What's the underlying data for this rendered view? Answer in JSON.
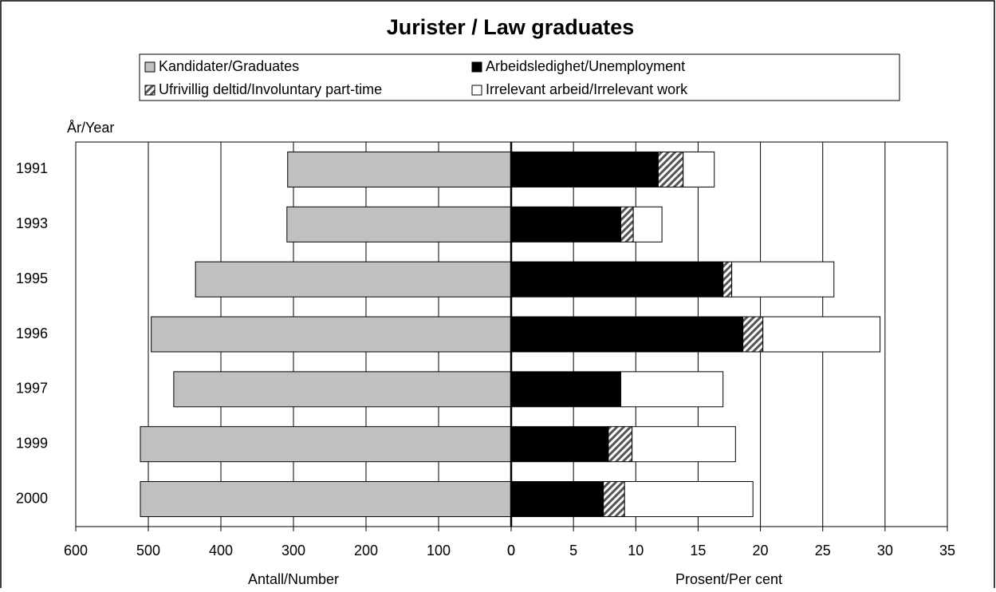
{
  "chart_data": {
    "type": "butterfly",
    "title": "Jurister / Law graduates",
    "ylabel": "År/Year",
    "categories": [
      "1991",
      "1993",
      "1995",
      "1996",
      "1997",
      "1999",
      "2000"
    ],
    "xlabel": "Antall/Number",
    "xlim": [
      600,
      0
    ],
    "xticks": [
      600,
      500,
      400,
      300,
      200,
      100,
      0
    ],
    "x2label": "Prosent/Per cent",
    "x2lim": [
      0,
      35
    ],
    "x2ticks": [
      0,
      5,
      10,
      15,
      20,
      25,
      30,
      35
    ],
    "grid": true,
    "series": [
      {
        "name": "Kandidater/Graduates",
        "color": "#c0c0c0",
        "axis": "x",
        "values": [
          308,
          309,
          435,
          496,
          465,
          511,
          511
        ]
      },
      {
        "name": "Arbeidsledighet/Unemployment",
        "color": "#000000",
        "axis": "x2",
        "values": [
          11.8,
          8.8,
          17.0,
          18.6,
          8.8,
          7.8,
          7.4
        ]
      },
      {
        "name": "Ufrivillig deltid/Involuntary part-time",
        "color": "#555555",
        "hatch": true,
        "axis": "x2",
        "values": [
          2.0,
          1.0,
          0.7,
          1.6,
          0,
          1.9,
          1.7
        ]
      },
      {
        "name": "Irrelevant arbeid/Irrelevant work",
        "color": "#ffffff",
        "axis": "x2",
        "values": [
          2.5,
          2.3,
          8.2,
          9.4,
          8.2,
          8.3,
          10.3
        ]
      }
    ]
  }
}
